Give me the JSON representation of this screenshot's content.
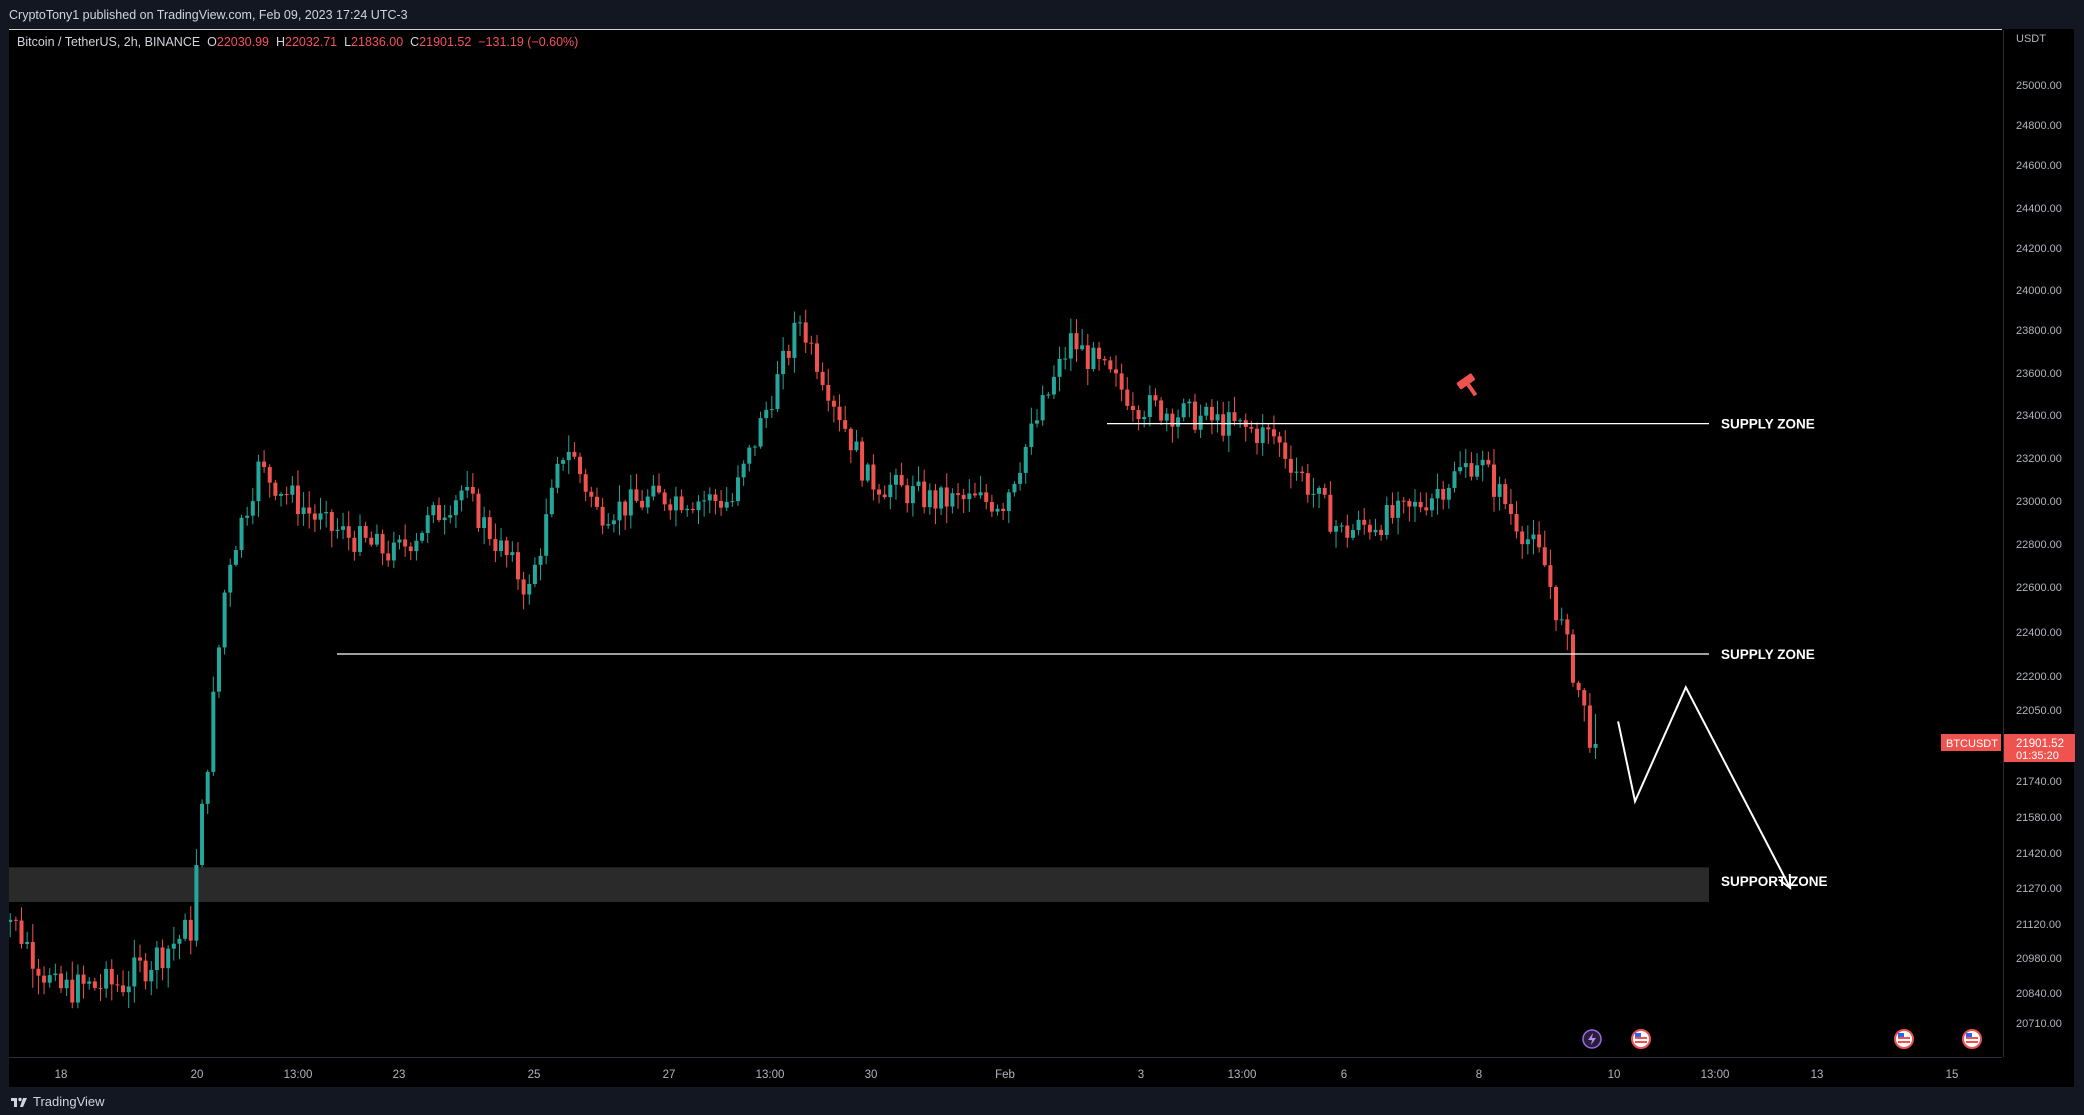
{
  "header": {
    "published_text": "CryptoTony1 published on TradingView.com, Feb 09, 2023 17:24 UTC-3"
  },
  "legend": {
    "symbol_text": "Bitcoin / TetherUS, 2h, BINANCE",
    "o_label": "O",
    "o_value": "22030.99",
    "h_label": "H",
    "h_value": "22032.71",
    "l_label": "L",
    "l_value": "21836.00",
    "c_label": "C",
    "c_value": "21901.52",
    "change": "−131.19 (−0.60%)"
  },
  "price_axis": {
    "currency": "USDT",
    "ticks": [
      "25000.00",
      "24800.00",
      "24600.00",
      "24400.00",
      "24200.00",
      "24000.00",
      "23800.00",
      "23600.00",
      "23400.00",
      "23200.00",
      "23000.00",
      "22800.00",
      "22600.00",
      "22400.00",
      "22200.00",
      "22050.00",
      "21740.00",
      "21580.00",
      "21420.00",
      "21270.00",
      "21120.00",
      "20980.00",
      "20840.00",
      "20710.00"
    ],
    "current_tag": "BTCUSDT",
    "current_price": "21901.52",
    "countdown": "01:35:20"
  },
  "time_axis": {
    "labels": [
      "18",
      "20",
      "13:00",
      "23",
      "25",
      "27",
      "13:00",
      "30",
      "Feb",
      "3",
      "13:00",
      "6",
      "8",
      "10",
      "13:00",
      "13",
      "15"
    ]
  },
  "annotations": {
    "zone_upper": "SUPPLY ZONE",
    "zone_middle": "SUPPLY ZONE",
    "zone_lower": "SUPPORT ZONE"
  },
  "event_icons": [
    "lightning-icon",
    "us-flag-icon",
    "us-flag-icon",
    "us-flag-icon"
  ],
  "footer": {
    "brand": "TradingView"
  },
  "colors": {
    "up": "#26a69a",
    "down": "#ef5350",
    "background": "#000000",
    "zone_fill": "#2a2a2a",
    "annotation": "#ffffff"
  },
  "chart_data": {
    "type": "candlestick",
    "symbol": "BTCUSDT",
    "interval": "2h",
    "exchange": "BINANCE",
    "last": {
      "open": 22030.99,
      "high": 22032.71,
      "low": 21836.0,
      "close": 21901.52
    },
    "price_path": [
      {
        "date": "Jan 17",
        "price": 21300
      },
      {
        "date": "Jan 18",
        "price": 20850
      },
      {
        "date": "Jan 19",
        "price": 20880
      },
      {
        "date": "Jan 20",
        "price": 21100
      },
      {
        "date": "Jan 20 13:00",
        "price": 22700
      },
      {
        "date": "Jan 21",
        "price": 23150
      },
      {
        "date": "Jan 22",
        "price": 22880
      },
      {
        "date": "Jan 23",
        "price": 22750
      },
      {
        "date": "Jan 24",
        "price": 23050
      },
      {
        "date": "Jan 25",
        "price": 22580
      },
      {
        "date": "Jan 25 13:00",
        "price": 23280
      },
      {
        "date": "Jan 26",
        "price": 22950
      },
      {
        "date": "Jan 27",
        "price": 23020
      },
      {
        "date": "Jan 28",
        "price": 23000
      },
      {
        "date": "Jan 29",
        "price": 23850
      },
      {
        "date": "Jan 30",
        "price": 23100
      },
      {
        "date": "Jan 31",
        "price": 23000
      },
      {
        "date": "Feb 1",
        "price": 23000
      },
      {
        "date": "Feb 2",
        "price": 23750
      },
      {
        "date": "Feb 3",
        "price": 23450
      },
      {
        "date": "Feb 4",
        "price": 23380
      },
      {
        "date": "Feb 5",
        "price": 23300
      },
      {
        "date": "Feb 6",
        "price": 22850
      },
      {
        "date": "Feb 7",
        "price": 22950
      },
      {
        "date": "Feb 8",
        "price": 23200
      },
      {
        "date": "Feb 9",
        "price": 22700
      },
      {
        "date": "Feb 9 17:00",
        "price": 21901.52
      }
    ],
    "levels": [
      {
        "label": "SUPPLY ZONE",
        "price": 23360
      },
      {
        "label": "SUPPLY ZONE",
        "price": 22300
      },
      {
        "label": "SUPPORT ZONE",
        "price_range": [
          21220,
          21350
        ]
      }
    ],
    "projection": [
      {
        "date": "Feb 10",
        "price": 22000
      },
      {
        "date": "Feb 10 06:00",
        "price": 21650
      },
      {
        "date": "Feb 11",
        "price": 22150
      },
      {
        "date": "Feb 12 13:00",
        "price": 21270
      }
    ]
  }
}
